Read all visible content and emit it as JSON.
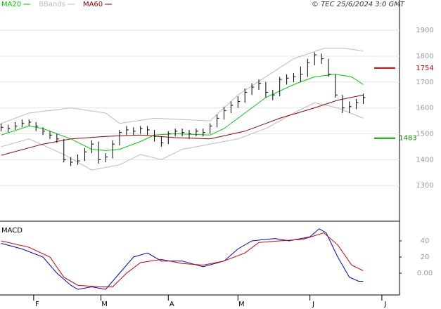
{
  "chart_data": [
    {
      "type": "ohlc",
      "legend": [
        {
          "name": "MA20",
          "color": "#00cc00"
        },
        {
          "name": "BBands",
          "color": "#bbbbbb"
        },
        {
          "name": "MA60",
          "color": "#990000"
        }
      ],
      "copyright": "© TEC 25/6/2024 3:0 GMT",
      "xlim": [
        17.5,
        189.6
      ],
      "ylim": [
        1162,
        2017
      ],
      "yticks": [
        1300,
        1400,
        1500,
        1600,
        1700,
        1800,
        1900
      ],
      "grid": true,
      "color": "#000000",
      "x": [
        18,
        21,
        24,
        27,
        30,
        33,
        36,
        39,
        42,
        45,
        48,
        51,
        54,
        57,
        60,
        63,
        66,
        69,
        72,
        75,
        78,
        81,
        84,
        87,
        90,
        93,
        96,
        99,
        102,
        105,
        108,
        111,
        114,
        117,
        120,
        123,
        126,
        129,
        132,
        135,
        138,
        141,
        144,
        147,
        150,
        153,
        156,
        159,
        162,
        165,
        168,
        171,
        174
      ],
      "high": [
        1540,
        1535,
        1545,
        1555,
        1555,
        1545,
        1525,
        1510,
        1500,
        1480,
        1410,
        1420,
        1445,
        1475,
        1470,
        1425,
        1475,
        1515,
        1530,
        1525,
        1530,
        1530,
        1515,
        1490,
        1510,
        1520,
        1520,
        1515,
        1520,
        1520,
        1540,
        1575,
        1605,
        1625,
        1645,
        1675,
        1695,
        1710,
        1700,
        1670,
        1720,
        1730,
        1735,
        1760,
        1790,
        1815,
        1810,
        1790,
        1730,
        1650,
        1625,
        1635,
        1655
      ],
      "low": [
        1510,
        1505,
        1515,
        1525,
        1530,
        1510,
        1495,
        1480,
        1465,
        1390,
        1375,
        1380,
        1395,
        1425,
        1385,
        1390,
        1405,
        1455,
        1495,
        1495,
        1500,
        1495,
        1470,
        1450,
        1460,
        1490,
        1490,
        1480,
        1490,
        1490,
        1500,
        1525,
        1555,
        1580,
        1600,
        1620,
        1650,
        1670,
        1640,
        1630,
        1645,
        1690,
        1700,
        1700,
        1720,
        1765,
        1770,
        1720,
        1640,
        1580,
        1580,
        1595,
        1615
      ],
      "close": [
        1525,
        1520,
        1530,
        1540,
        1545,
        1530,
        1510,
        1495,
        1480,
        1400,
        1390,
        1395,
        1430,
        1460,
        1400,
        1410,
        1460,
        1505,
        1515,
        1510,
        1520,
        1515,
        1490,
        1465,
        1500,
        1510,
        1505,
        1500,
        1510,
        1505,
        1530,
        1560,
        1590,
        1610,
        1625,
        1660,
        1680,
        1695,
        1660,
        1650,
        1710,
        1715,
        1720,
        1730,
        1775,
        1805,
        1790,
        1730,
        1650,
        1600,
        1605,
        1620,
        1640
      ],
      "series": [
        {
          "color": "#bbbbbb",
          "x": [
            18,
            30,
            48,
            63,
            69,
            84,
            108,
            120,
            132,
            144,
            157,
            166,
            174
          ],
          "values": [
            1540,
            1580,
            1600,
            1580,
            1540,
            1560,
            1550,
            1650,
            1720,
            1790,
            1830,
            1830,
            1820
          ]
        },
        {
          "color": "#bbbbbb",
          "x": [
            18,
            30,
            45,
            57,
            69,
            78,
            87,
            96,
            108,
            120,
            132,
            144,
            153,
            163,
            174
          ],
          "values": [
            1450,
            1480,
            1420,
            1360,
            1380,
            1420,
            1400,
            1440,
            1460,
            1480,
            1520,
            1580,
            1620,
            1600,
            1560
          ]
        },
        {
          "color": "#00cc00",
          "x": [
            18,
            30,
            36,
            48,
            57,
            63,
            69,
            78,
            84,
            93,
            108,
            114,
            123,
            132,
            144,
            153,
            162,
            169,
            174
          ],
          "values": [
            1495,
            1530,
            1520,
            1480,
            1440,
            1435,
            1440,
            1470,
            1495,
            1500,
            1495,
            1520,
            1580,
            1640,
            1690,
            1720,
            1730,
            1720,
            1690
          ]
        },
        {
          "color": "#990000",
          "x": [
            18,
            36,
            48,
            63,
            78,
            93,
            108,
            123,
            138,
            153,
            163,
            174
          ],
          "values": [
            1417,
            1460,
            1480,
            1490,
            1495,
            1485,
            1480,
            1510,
            1560,
            1600,
            1630,
            1650
          ]
        }
      ],
      "levels": [
        {
          "value": 1754,
          "color": "#cc0000"
        },
        {
          "value": 1483,
          "color": "#009900"
        }
      ]
    },
    {
      "type": "line",
      "title": "MACD",
      "xlim": [
        17.5,
        189.6
      ],
      "xticks": [
        {
          "value": 32,
          "label": "F"
        },
        {
          "value": 61,
          "label": "M"
        },
        {
          "value": 90,
          "label": "A"
        },
        {
          "value": 120,
          "label": "M"
        },
        {
          "value": 151,
          "label": "J"
        },
        {
          "value": 182,
          "label": "J"
        }
      ],
      "ylim": [
        -27,
        63.5
      ],
      "yticks": [
        {
          "value": 0,
          "label": "0.00"
        },
        {
          "value": 20,
          "label": "20"
        },
        {
          "value": 40,
          "label": "40"
        }
      ],
      "series": [
        {
          "color": "#0000cc",
          "x": [
            18,
            27,
            36,
            42,
            48,
            51,
            57,
            63,
            69,
            75,
            81,
            87,
            96,
            105,
            114,
            120,
            126,
            136,
            142,
            151,
            155,
            158,
            163,
            168,
            172,
            174
          ],
          "values": [
            37,
            30,
            20,
            0,
            -15,
            -20,
            -17,
            -20,
            0,
            20,
            25,
            15,
            15,
            8,
            15,
            30,
            40,
            43,
            40,
            45,
            55,
            50,
            20,
            -5,
            -10,
            -10
          ]
        },
        {
          "color": "#cc0000",
          "x": [
            18,
            30,
            39,
            45,
            51,
            60,
            66,
            72,
            78,
            87,
            96,
            105,
            114,
            123,
            129,
            138,
            148,
            157,
            163,
            169,
            174
          ],
          "values": [
            40,
            32,
            20,
            -5,
            -15,
            -17,
            -17,
            0,
            13,
            17,
            12,
            10,
            15,
            25,
            38,
            40,
            42,
            50,
            35,
            10,
            3
          ]
        }
      ]
    }
  ]
}
